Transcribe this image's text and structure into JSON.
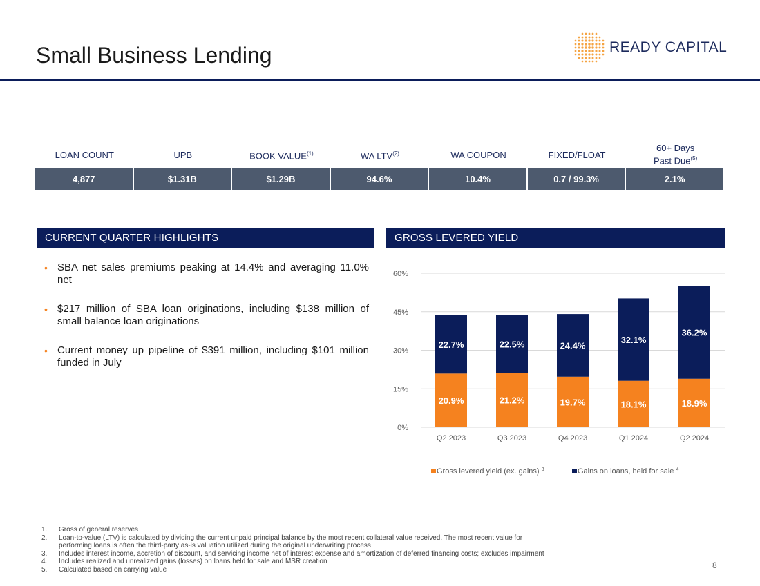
{
  "page": {
    "title": "Small Business Lending",
    "page_number": "8"
  },
  "logo": {
    "text": "READY CAPITAL",
    "trademark": ".",
    "icon": "dot-grid-logo-icon"
  },
  "metrics": [
    {
      "label": "LOAN COUNT",
      "sup": "",
      "label2": "",
      "sup2": "",
      "value": "4,877"
    },
    {
      "label": "UPB",
      "sup": "",
      "label2": "",
      "sup2": "",
      "value": "$1.31B"
    },
    {
      "label": "BOOK VALUE",
      "sup": "(1)",
      "label2": "",
      "sup2": "",
      "value": "$1.29B"
    },
    {
      "label": "WA LTV",
      "sup": "(2)",
      "label2": "",
      "sup2": "",
      "value": "94.6%"
    },
    {
      "label": "WA COUPON",
      "sup": "",
      "label2": "",
      "sup2": "",
      "value": "10.4%"
    },
    {
      "label": "FIXED/FLOAT",
      "sup": "",
      "label2": "",
      "sup2": "",
      "value": "0.7 / 99.3%"
    },
    {
      "label": "60+ Days",
      "sup": "",
      "label2": "Past Due",
      "sup2": "(5)",
      "value": "2.1%"
    }
  ],
  "highlights": {
    "header": "CURRENT QUARTER HIGHLIGHTS",
    "items": [
      "SBA net sales premiums peaking at 14.4% and averaging 11.0% net",
      "$217 million of SBA loan originations, including $138 million of small balance loan originations",
      "Current money up pipeline of $391 million, including $101 million funded in July"
    ]
  },
  "yield": {
    "header": "GROSS LEVERED YIELD"
  },
  "chart_data": {
    "type": "bar",
    "stacked": true,
    "title": "GROSS LEVERED YIELD",
    "categories": [
      "Q2 2023",
      "Q3 2023",
      "Q4 2023",
      "Q1 2024",
      "Q2 2024"
    ],
    "series": [
      {
        "name": "Gross levered yield (ex. gains)",
        "sup": "3",
        "color": "#f5821f",
        "values": [
          20.9,
          21.2,
          19.7,
          18.1,
          18.9
        ],
        "labels": [
          "20.9%",
          "21.2%",
          "19.7%",
          "18.1%",
          "18.9%"
        ]
      },
      {
        "name": "Gains on loans, held for sale",
        "sup": "4",
        "color": "#0b1d5a",
        "values": [
          22.7,
          22.5,
          24.4,
          32.1,
          36.2
        ],
        "labels": [
          "22.7%",
          "22.5%",
          "24.4%",
          "32.1%",
          "36.2%"
        ]
      }
    ],
    "yticks": [
      "0%",
      "15%",
      "30%",
      "45%",
      "60%"
    ],
    "ytick_values": [
      0,
      15,
      30,
      45,
      60
    ],
    "ylim": [
      0,
      60
    ],
    "gridlines": true,
    "legend": "bottom"
  },
  "footnotes": [
    {
      "num": "1.",
      "text": "Gross of general reserves"
    },
    {
      "num": "2.",
      "text": "Loan-to-value (LTV) is calculated by dividing the current unpaid principal balance by the most recent collateral value received. The most recent value for"
    },
    {
      "num": "",
      "text": "performing loans is often the third-party as-is valuation utilized during the original underwriting process"
    },
    {
      "num": "3.",
      "text": "Includes interest income, accretion of discount, and servicing income net of interest expense and amortization of deferred financing costs; excludes impairment"
    },
    {
      "num": "4.",
      "text": "Includes realized and unrealized gains (losses) on loans held for sale and MSR creation"
    },
    {
      "num": "5.",
      "text": "Calculated based on carrying value"
    }
  ]
}
